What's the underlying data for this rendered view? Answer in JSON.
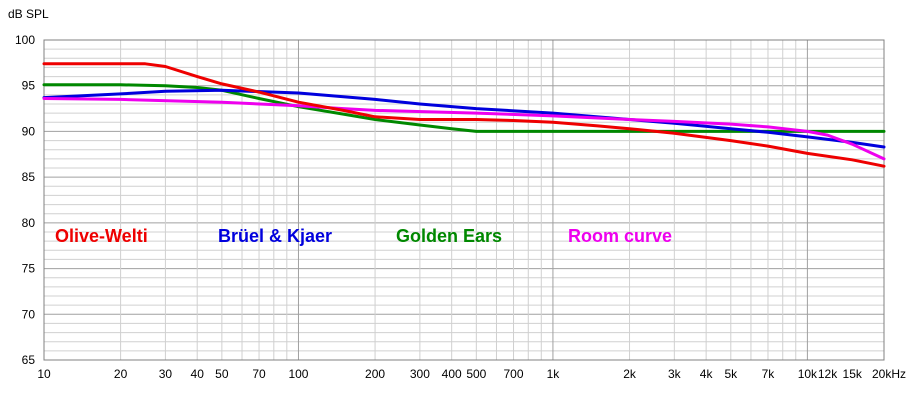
{
  "chart_data": {
    "type": "line",
    "ylabel": "dB SPL",
    "xscale": "log",
    "xlim": [
      10,
      20000
    ],
    "ylim": [
      65,
      100
    ],
    "grid": true,
    "x_ticks": [
      {
        "v": 10,
        "label": "10"
      },
      {
        "v": 20,
        "label": "20"
      },
      {
        "v": 30,
        "label": "30"
      },
      {
        "v": 40,
        "label": "40"
      },
      {
        "v": 50,
        "label": "50"
      },
      {
        "v": 70,
        "label": "70"
      },
      {
        "v": 100,
        "label": "100"
      },
      {
        "v": 200,
        "label": "200"
      },
      {
        "v": 300,
        "label": "300"
      },
      {
        "v": 400,
        "label": "400"
      },
      {
        "v": 500,
        "label": "500"
      },
      {
        "v": 700,
        "label": "700"
      },
      {
        "v": 1000,
        "label": "1k"
      },
      {
        "v": 2000,
        "label": "2k"
      },
      {
        "v": 3000,
        "label": "3k"
      },
      {
        "v": 4000,
        "label": "4k"
      },
      {
        "v": 5000,
        "label": "5k"
      },
      {
        "v": 7000,
        "label": "7k"
      },
      {
        "v": 10000,
        "label": "10k"
      },
      {
        "v": 12000,
        "label": "12k"
      },
      {
        "v": 15000,
        "label": "15k"
      },
      {
        "v": 20000,
        "label": "20kHz"
      }
    ],
    "y_ticks": [
      {
        "v": 100,
        "label": "100"
      },
      {
        "v": 95,
        "label": "95"
      },
      {
        "v": 90,
        "label": "90"
      },
      {
        "v": 85,
        "label": "85"
      },
      {
        "v": 80,
        "label": "80"
      },
      {
        "v": 75,
        "label": "75"
      },
      {
        "v": 70,
        "label": "70"
      },
      {
        "v": 65,
        "label": "65"
      }
    ],
    "series": [
      {
        "name": "Olive-Welti",
        "color": "#ee0000",
        "points": [
          [
            10,
            97.4
          ],
          [
            20,
            97.4
          ],
          [
            25,
            97.4
          ],
          [
            30,
            97.1
          ],
          [
            40,
            96.0
          ],
          [
            50,
            95.2
          ],
          [
            70,
            94.3
          ],
          [
            100,
            93.2
          ],
          [
            150,
            92.3
          ],
          [
            200,
            91.6
          ],
          [
            300,
            91.3
          ],
          [
            500,
            91.3
          ],
          [
            700,
            91.2
          ],
          [
            1000,
            91.0
          ],
          [
            1500,
            90.6
          ],
          [
            2000,
            90.3
          ],
          [
            3000,
            89.8
          ],
          [
            5000,
            89.0
          ],
          [
            7000,
            88.4
          ],
          [
            10000,
            87.6
          ],
          [
            15000,
            86.9
          ],
          [
            20000,
            86.2
          ]
        ]
      },
      {
        "name": "Brüel & Kjaer",
        "color": "#0000dd",
        "points": [
          [
            10,
            93.7
          ],
          [
            20,
            94.1
          ],
          [
            30,
            94.4
          ],
          [
            50,
            94.5
          ],
          [
            100,
            94.2
          ],
          [
            200,
            93.5
          ],
          [
            300,
            93.0
          ],
          [
            500,
            92.5
          ],
          [
            1000,
            92.0
          ],
          [
            2000,
            91.3
          ],
          [
            3000,
            90.9
          ],
          [
            5000,
            90.3
          ],
          [
            7000,
            89.9
          ],
          [
            10000,
            89.4
          ],
          [
            15000,
            88.8
          ],
          [
            20000,
            88.3
          ]
        ]
      },
      {
        "name": "Golden Ears",
        "color": "#008800",
        "points": [
          [
            10,
            95.1
          ],
          [
            20,
            95.1
          ],
          [
            30,
            95.0
          ],
          [
            40,
            94.8
          ],
          [
            50,
            94.5
          ],
          [
            70,
            93.6
          ],
          [
            100,
            92.7
          ],
          [
            150,
            91.9
          ],
          [
            200,
            91.3
          ],
          [
            300,
            90.7
          ],
          [
            400,
            90.3
          ],
          [
            500,
            90.0
          ],
          [
            1000,
            90.0
          ],
          [
            2000,
            90.0
          ],
          [
            5000,
            90.0
          ],
          [
            10000,
            90.0
          ],
          [
            20000,
            90.0
          ]
        ]
      },
      {
        "name": "Room curve",
        "color": "#ee00ee",
        "points": [
          [
            10,
            93.6
          ],
          [
            20,
            93.5
          ],
          [
            50,
            93.2
          ],
          [
            100,
            92.8
          ],
          [
            150,
            92.5
          ],
          [
            200,
            92.3
          ],
          [
            500,
            92.0
          ],
          [
            1000,
            91.7
          ],
          [
            2000,
            91.3
          ],
          [
            3000,
            91.1
          ],
          [
            5000,
            90.8
          ],
          [
            7000,
            90.5
          ],
          [
            10000,
            90.0
          ],
          [
            12000,
            89.6
          ],
          [
            15000,
            88.6
          ],
          [
            20000,
            87.0
          ]
        ]
      }
    ]
  }
}
